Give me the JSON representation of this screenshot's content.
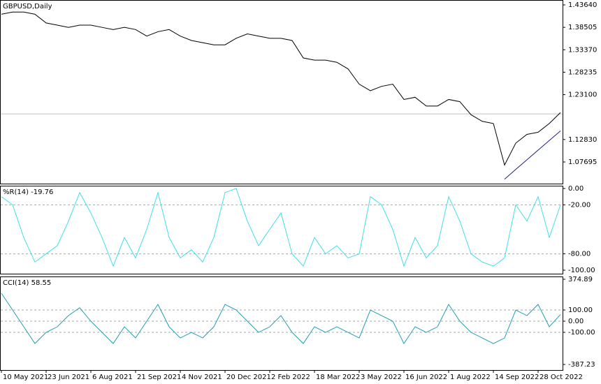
{
  "chart_data": [
    {
      "type": "line",
      "title": "GBPUSD,Daily",
      "color": "#000000",
      "categories": [
        "10 May 2021",
        null,
        null,
        null,
        "23 Jun 2021",
        null,
        null,
        null,
        "6 Aug 2021",
        null,
        null,
        null,
        "21 Sep 2021",
        null,
        null,
        null,
        "4 Nov 2021",
        null,
        null,
        null,
        "20 Dec 2021",
        null,
        null,
        null,
        "2 Feb 2022",
        null,
        null,
        null,
        "18 Mar 2022",
        null,
        null,
        null,
        "3 May 2022",
        null,
        null,
        null,
        "16 Jun 2022",
        null,
        null,
        null,
        "1 Aug 2022",
        null,
        null,
        null,
        "14 Sep 2022",
        null,
        null,
        null,
        "28 Oct 2022",
        null,
        null
      ],
      "values": [
        1.415,
        1.42,
        1.42,
        1.415,
        1.395,
        1.39,
        1.385,
        1.39,
        1.39,
        1.385,
        1.38,
        1.385,
        1.38,
        1.365,
        1.375,
        1.38,
        1.365,
        1.355,
        1.35,
        1.345,
        1.345,
        1.36,
        1.37,
        1.365,
        1.36,
        1.36,
        1.355,
        1.315,
        1.31,
        1.31,
        1.305,
        1.29,
        1.255,
        1.24,
        1.25,
        1.255,
        1.22,
        1.225,
        1.205,
        1.205,
        1.22,
        1.215,
        1.185,
        1.17,
        1.165,
        1.07,
        1.12,
        1.14,
        1.145,
        1.165,
        1.19
      ],
      "trendline_values": [
        null,
        null,
        null,
        null,
        null,
        null,
        null,
        null,
        null,
        null,
        null,
        null,
        null,
        null,
        null,
        null,
        null,
        null,
        null,
        null,
        null,
        null,
        null,
        null,
        null,
        null,
        null,
        null,
        null,
        null,
        null,
        null,
        null,
        null,
        null,
        null,
        null,
        null,
        null,
        null,
        null,
        null,
        null,
        null,
        null,
        1.0375,
        1.06,
        1.082,
        1.104,
        1.126,
        1.148
      ],
      "trendline_color": "#1e1e8c",
      "last_value": 1.1869,
      "last_color": "#c0c0c0",
      "ylim": [
        1.0274,
        1.4476
      ],
      "yticks": [
        {
          "value": 1.4364,
          "label": "1.43640"
        },
        {
          "value": 1.38505,
          "label": "1.38505"
        },
        {
          "value": 1.3337,
          "label": "1.33370"
        },
        {
          "value": 1.28235,
          "label": "1.28235"
        },
        {
          "value": 1.231,
          "label": "1.23100"
        },
        {
          "value": 1.1283,
          "label": "1.12830"
        },
        {
          "value": 1.07695,
          "label": "1.07695"
        }
      ]
    },
    {
      "type": "line",
      "title": "%R(14) -19.76",
      "color": "#40e0e8",
      "values": [
        -10,
        -20,
        -60,
        -90,
        -80,
        -70,
        -40,
        -5,
        -30,
        -60,
        -95,
        -60,
        -85,
        -50,
        -5,
        -60,
        -85,
        -75,
        -90,
        -60,
        -5,
        0,
        -40,
        -70,
        -50,
        -30,
        -80,
        -95,
        -60,
        -80,
        -70,
        -85,
        -80,
        -10,
        -20,
        -50,
        -95,
        -60,
        -85,
        -70,
        -10,
        -40,
        -80,
        -90,
        -95,
        -85,
        -20,
        -40,
        -10,
        -60,
        -20
      ],
      "ylim": [
        -104.3,
        3.4
      ],
      "yticks": [
        {
          "value": 0,
          "label": "0.00"
        },
        {
          "value": -20,
          "label": "-20.00"
        },
        {
          "value": -80,
          "label": "-80.00"
        },
        {
          "value": -100,
          "label": "-100.00"
        }
      ],
      "levels": [
        -20,
        -80
      ]
    },
    {
      "type": "line",
      "title": "CCI(14) 58.55",
      "color": "#20a0b0",
      "values": [
        250,
        100,
        -50,
        -200,
        -100,
        -50,
        50,
        120,
        0,
        -100,
        -200,
        -50,
        -150,
        0,
        150,
        -50,
        -150,
        -100,
        -150,
        -50,
        150,
        100,
        0,
        -100,
        -50,
        50,
        -100,
        -200,
        -50,
        -100,
        -50,
        -100,
        -150,
        100,
        50,
        0,
        -200,
        -50,
        -100,
        -50,
        150,
        0,
        -100,
        -150,
        -200,
        -150,
        100,
        50,
        150,
        -50,
        59
      ],
      "ylim": [
        -437.2,
        399.9
      ],
      "yticks": [
        374.89,
        {
          "value": 100,
          "label": "100.00"
        },
        {
          "value": 0,
          "label": "0.00"
        },
        {
          "value": -100,
          "label": "-100.00"
        },
        -387.23
      ],
      "levels": [
        100,
        0,
        -100
      ]
    }
  ]
}
